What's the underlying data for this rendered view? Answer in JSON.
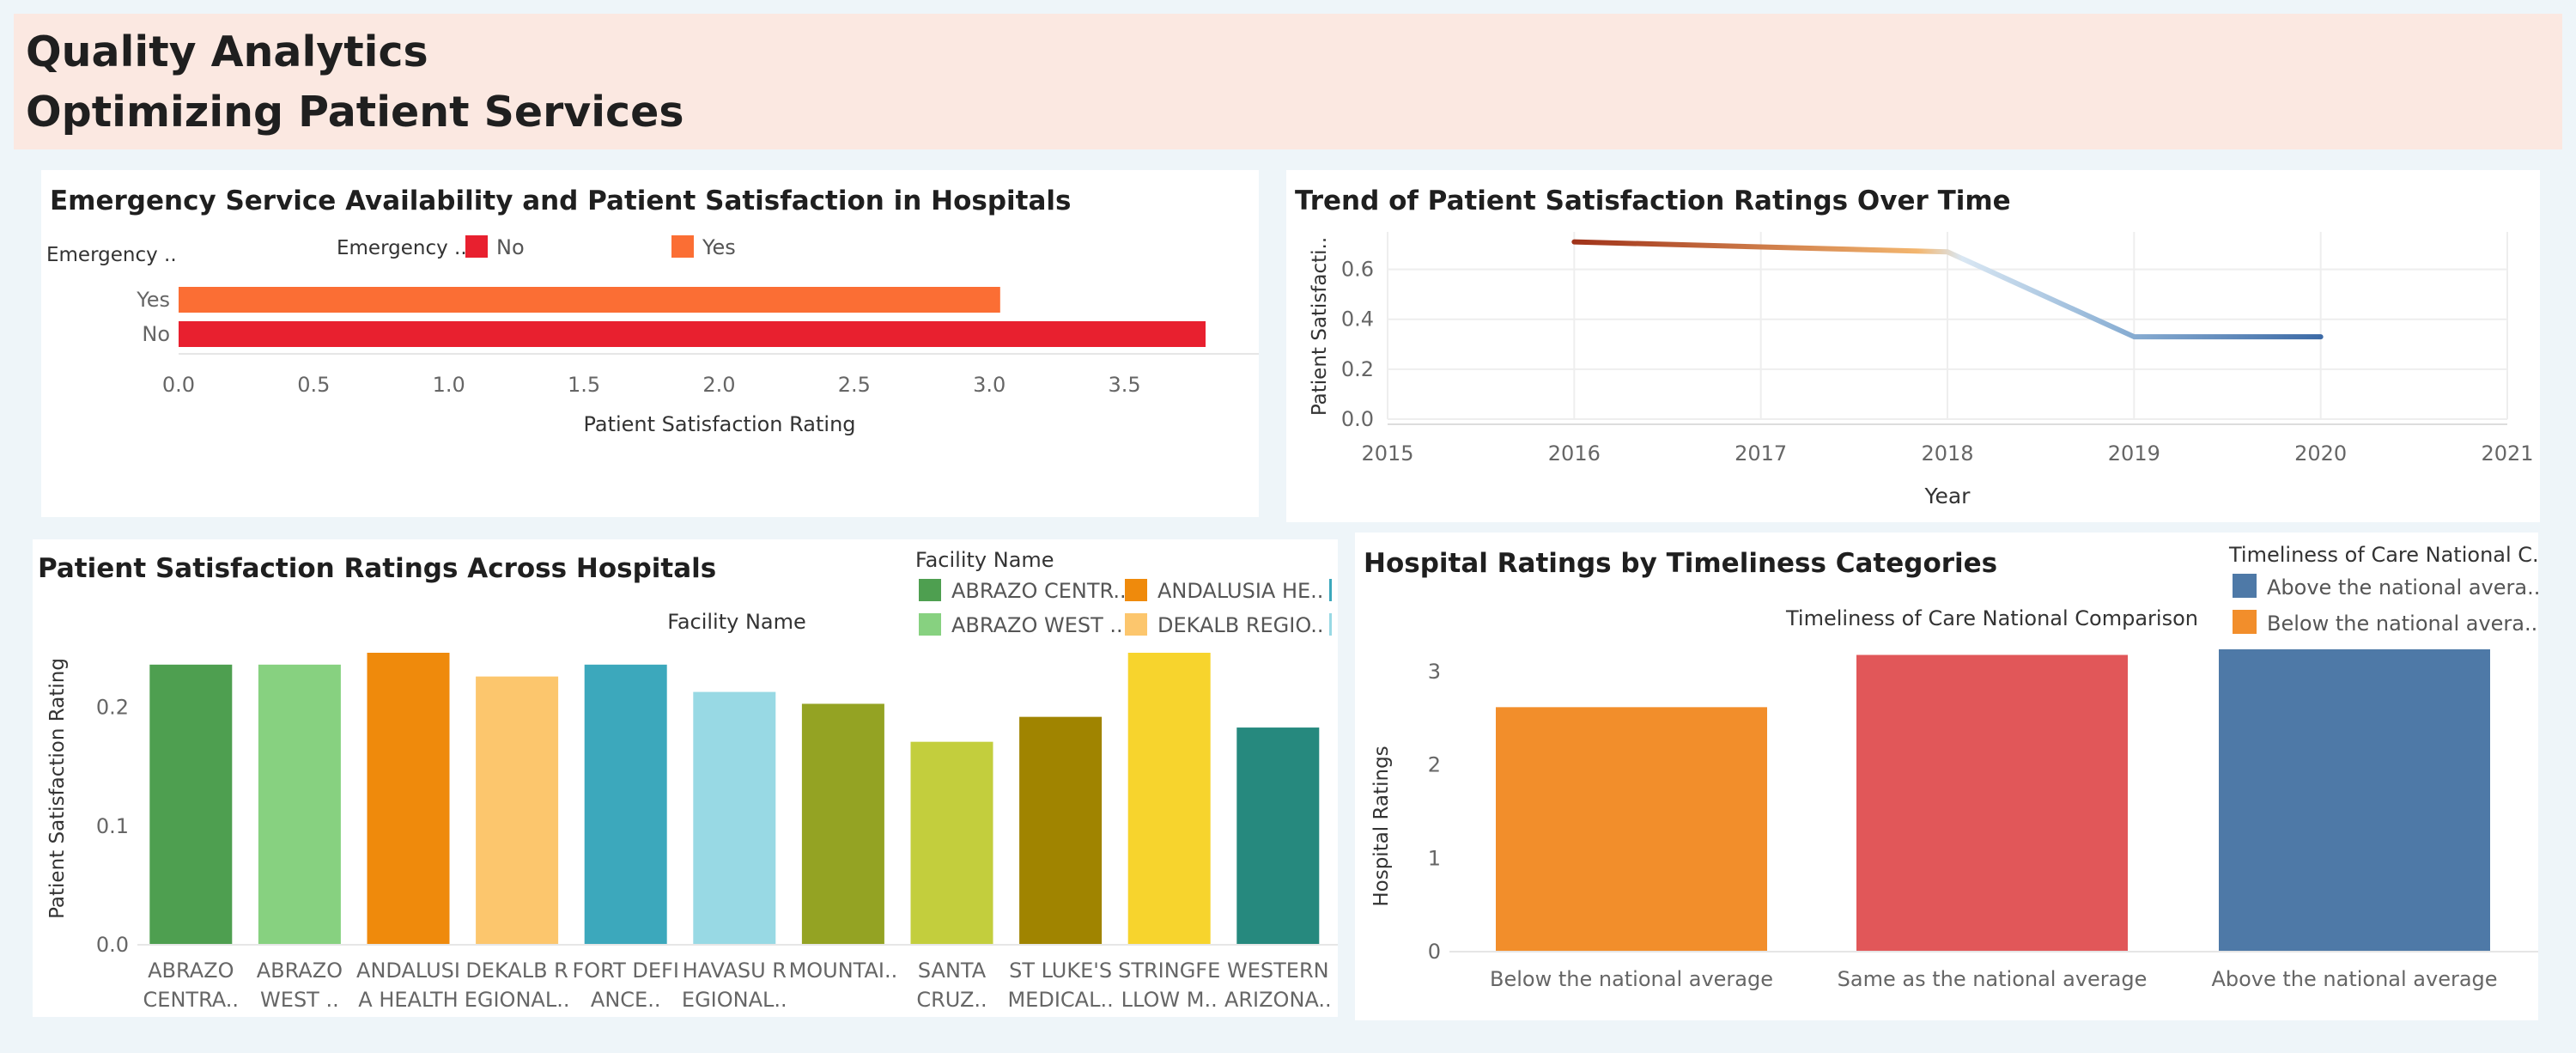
{
  "header": {
    "title_line1": "Quality Analytics",
    "title_line2": "Optimizing Patient Services"
  },
  "colors": {
    "no_red": "#e8202f",
    "yes_orange": "#fb6e34",
    "trend_start": "#a0331a",
    "trend_end": "#3c6aa6",
    "below_avg": "#f28e2b",
    "same_avg": "#e15759",
    "above_avg": "#4e79a7"
  },
  "chart_data": [
    {
      "id": "emergency",
      "type": "bar",
      "orientation": "horizontal",
      "title": "Emergency Service Availability and Patient Satisfaction in Hospitals",
      "row_header": "Emergency ..",
      "legend_title": "Emergency ..",
      "legend": [
        {
          "label": "No",
          "color": "#e8202f"
        },
        {
          "label": "Yes",
          "color": "#fb6e34"
        }
      ],
      "categories": [
        "Yes",
        "No"
      ],
      "values": [
        3.04,
        3.8
      ],
      "xlabel": "Patient Satisfaction Rating",
      "xlim": [
        0,
        3.8
      ],
      "xticks": [
        "0.0",
        "0.5",
        "1.0",
        "1.5",
        "2.0",
        "2.5",
        "3.0",
        "3.5"
      ],
      "grid": false
    },
    {
      "id": "trend",
      "type": "line",
      "title": "Trend of Patient Satisfaction Ratings Over Time",
      "x": [
        2016,
        2018,
        2019,
        2020
      ],
      "values": [
        0.71,
        0.67,
        0.33,
        0.33
      ],
      "xlabel": "Year",
      "ylabel": "Patient Satisfacti..",
      "xlim": [
        2015,
        2021
      ],
      "ylim": [
        0,
        0.75
      ],
      "xticks": [
        "2015",
        "2016",
        "2017",
        "2018",
        "2019",
        "2020",
        "2021"
      ],
      "yticks": [
        "0.0",
        "0.2",
        "0.4",
        "0.6"
      ],
      "grid": true
    },
    {
      "id": "hospitals",
      "type": "bar",
      "title": "Patient Satisfaction Ratings Across Hospitals",
      "header_label": "Facility Name",
      "legend_title": "Facility Name",
      "legend": [
        {
          "label": "ABRAZO CENTR..",
          "color": "#4e9f50"
        },
        {
          "label": "ANDALUSIA HE..",
          "color": "#ef8a0c"
        },
        {
          "label": "ABRAZO WEST ..",
          "color": "#87d180"
        },
        {
          "label": "DEKALB REGIO..",
          "color": "#fcc66d"
        }
      ],
      "categories": [
        {
          "line1": "ABRAZO",
          "line2": "CENTRA..",
          "color": "#4e9f50"
        },
        {
          "line1": "ABRAZO",
          "line2": "WEST ..",
          "color": "#87d180"
        },
        {
          "line1": "ANDALUSI",
          "line2": "A HEALTH",
          "color": "#ef8a0c"
        },
        {
          "line1": "DEKALB R",
          "line2": "EGIONAL..",
          "color": "#fcc66d"
        },
        {
          "line1": "FORT DEFI",
          "line2": "ANCE..",
          "color": "#3ca8bc"
        },
        {
          "line1": "HAVASU R",
          "line2": "EGIONAL..",
          "color": "#98d9e4"
        },
        {
          "line1": "MOUNTAI..",
          "line2": "",
          "color": "#94a323"
        },
        {
          "line1": "SANTA",
          "line2": "CRUZ..",
          "color": "#c3ce3d"
        },
        {
          "line1": "ST LUKE'S",
          "line2": "MEDICAL..",
          "color": "#a08400"
        },
        {
          "line1": "STRINGFE",
          "line2": "LLOW M..",
          "color": "#f7d42d"
        },
        {
          "line1": "WESTERN",
          "line2": "ARIZONA..",
          "color": "#26897e"
        }
      ],
      "values": [
        0.236,
        0.236,
        0.246,
        0.226,
        0.236,
        0.213,
        0.203,
        0.171,
        0.192,
        0.246,
        0.183
      ],
      "ylabel": "Patient Satisfaction Rating",
      "ylim": [
        0,
        0.246
      ],
      "yticks": [
        "0.0",
        "0.1",
        "0.2"
      ],
      "grid": false
    },
    {
      "id": "timeliness",
      "type": "bar",
      "title": "Hospital Ratings by Timeliness Categories",
      "header_label": "Timeliness of Care National Comparison",
      "legend_title": "Timeliness of Care National C..",
      "legend": [
        {
          "label": "Above the national avera..",
          "color": "#4e79a7"
        },
        {
          "label": "Below the national avera..",
          "color": "#f28e2b"
        }
      ],
      "categories": [
        {
          "label": "Below the national average",
          "color": "#f28e2b"
        },
        {
          "label": "Same as the national average",
          "color": "#e15759"
        },
        {
          "label": "Above the national average",
          "color": "#4e79a7"
        }
      ],
      "values": [
        2.62,
        3.18,
        3.24
      ],
      "ylabel": "Hospital Ratings",
      "ylim": [
        0,
        3.24
      ],
      "yticks": [
        "0",
        "1",
        "2",
        "3"
      ],
      "grid": false
    }
  ]
}
